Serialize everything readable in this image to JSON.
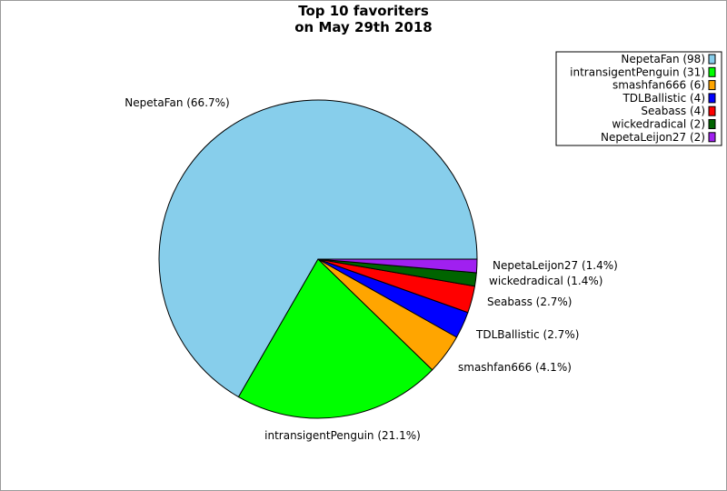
{
  "chart_data": {
    "type": "pie",
    "title_lines": [
      "Top 10 favoriters",
      "on May 29th 2018"
    ],
    "slices": [
      {
        "name": "NepetaFan",
        "value": 98,
        "percent_label": "NepetaFan (66.7%)",
        "legend_label": "NepetaFan (98)",
        "color": "#87ceeb"
      },
      {
        "name": "intransigentPenguin",
        "value": 31,
        "percent_label": "intransigentPenguin (21.1%)",
        "legend_label": "intransigentPenguin (31)",
        "color": "#00ff00"
      },
      {
        "name": "smashfan666",
        "value": 6,
        "percent_label": "smashfan666 (4.1%)",
        "legend_label": "smashfan666 (6)",
        "color": "#ffa500"
      },
      {
        "name": "TDLBallistic",
        "value": 4,
        "percent_label": "TDLBallistic (2.7%)",
        "legend_label": "TDLBallistic (4)",
        "color": "#0000ff"
      },
      {
        "name": "Seabass",
        "value": 4,
        "percent_label": "Seabass (2.7%)",
        "legend_label": "Seabass (4)",
        "color": "#ff0000"
      },
      {
        "name": "wickedradical",
        "value": 2,
        "percent_label": "wickedradical (1.4%)",
        "legend_label": "wickedradical (2)",
        "color": "#006400"
      },
      {
        "name": "NepetaLeijon27",
        "value": 2,
        "percent_label": "NepetaLeijon27 (1.4%)",
        "legend_label": "NepetaLeijon27 (2)",
        "color": "#a020f0"
      }
    ],
    "legend_position": "top-right",
    "start_angle": "3 o'clock",
    "direction": "counterclockwise"
  }
}
